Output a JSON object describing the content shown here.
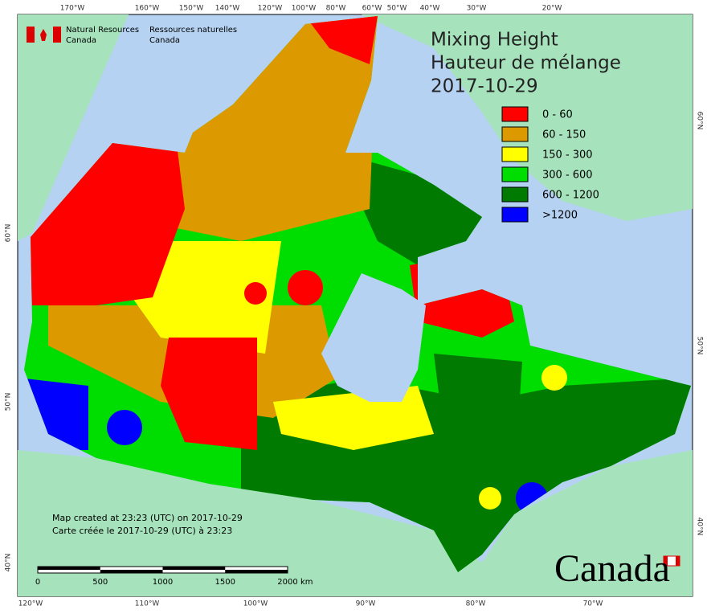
{
  "header": {
    "agency_en": [
      "Natural Resources",
      "Canada"
    ],
    "agency_fr": [
      "Ressources naturelles",
      "Canada"
    ]
  },
  "title": [
    "Mixing Height",
    "Hauteur de mélange",
    "2017-10-29"
  ],
  "legend": [
    {
      "label": "0 - 60",
      "color": "#ff0000"
    },
    {
      "label": "60 - 150",
      "color": "#dd9a00"
    },
    {
      "label": "150 - 300",
      "color": "#ffff00"
    },
    {
      "label": "300 - 600",
      "color": "#00dd00"
    },
    {
      "label": "600 - 1200",
      "color": "#007a00"
    },
    {
      "label": ">1200",
      "color": "#0000ff"
    }
  ],
  "graticule": {
    "top": [
      "170°W",
      "160°W",
      "150°W",
      "140°W",
      "120°W",
      "100°W",
      "80°W",
      "60°W",
      "50°W",
      "40°W",
      "30°W",
      "20°W"
    ],
    "bottom": [
      "120°W",
      "110°W",
      "100°W",
      "90°W",
      "80°W",
      "70°W"
    ],
    "left": [
      "60°N",
      "50°N",
      "40°N"
    ],
    "right": [
      "60°N",
      "50°N",
      "40°N"
    ]
  },
  "scale_bar": {
    "labels": [
      "0",
      "500",
      "1000",
      "1500",
      "2000"
    ],
    "unit": "km"
  },
  "credit": [
    "Map created at 23:23 (UTC) on 2017-10-29",
    "Carte créée le 2017-10-29 (UTC) à 23:23"
  ],
  "wordmark": "Canada"
}
